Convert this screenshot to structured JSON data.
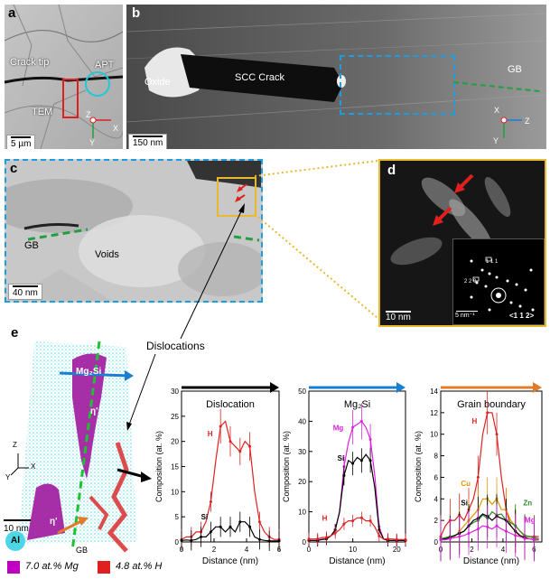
{
  "panels": {
    "a": {
      "label": "a",
      "crack_tip": "Crack tip",
      "apt": "APT",
      "tem": "TEM",
      "scale": "5 µm",
      "axes": {
        "z": "Z",
        "x": "X",
        "y": "Y"
      }
    },
    "b": {
      "label": "b",
      "oxide": "Oxide",
      "scc": "SCC Crack",
      "gb": "GB",
      "scale": "150 nm",
      "axes": {
        "x": "X",
        "z": "Z",
        "y": "Y"
      }
    },
    "c": {
      "label": "c",
      "gb": "GB",
      "voids": "Voids",
      "scale": "40 nm"
    },
    "d": {
      "label": "d",
      "scale": "10 nm",
      "inset_scale": "5 nm⁻¹",
      "zone": "<1 1 2>",
      "spot1": "1 1 1",
      "spot2": "2 2 0"
    },
    "e": {
      "label": "e",
      "dislocations": "Dislocations",
      "mg2si": "Mg₂Si",
      "eta": "η'",
      "eta2": "η'",
      "gb": "GB",
      "scale": "10 nm",
      "al": "Al",
      "axes": {
        "z": "Z",
        "x": "X",
        "y": "Y"
      }
    }
  },
  "legend": {
    "mg": "7.0 at.% Mg",
    "h": "4.8 at.% H",
    "mg_color": "#c000c0",
    "h_color": "#e02020"
  },
  "colors": {
    "h": "#dd2222",
    "si": "#000000",
    "mg": "#dd22dd",
    "cu": "#e69500",
    "zn": "#2a8a2a",
    "arrow_black": "#000000",
    "arrow_blue": "#1a7fd0",
    "arrow_orange": "#e07b2a",
    "dashed_blue": "#1a9ee0",
    "gold": "#e8b830"
  },
  "chart_data": [
    {
      "type": "line",
      "title": "Dislocation",
      "xlabel": "Distance (nm)",
      "ylabel": "Composition (at. %)",
      "xlim": [
        0,
        6
      ],
      "ylim": [
        0,
        30
      ],
      "xticks": [
        0,
        2,
        4,
        6
      ],
      "yticks": [
        0,
        5,
        10,
        15,
        20,
        25,
        30
      ],
      "series": [
        {
          "name": "H",
          "color": "#dd2222",
          "x": [
            0,
            0.3,
            0.6,
            0.9,
            1.2,
            1.5,
            1.8,
            2.1,
            2.4,
            2.7,
            3.0,
            3.3,
            3.6,
            3.9,
            4.2,
            4.5,
            4.8,
            5.1,
            5.4,
            5.7,
            6.0
          ],
          "y": [
            0.5,
            1,
            1,
            2,
            2,
            4,
            8,
            16,
            23,
            24,
            20,
            19,
            18,
            20,
            19,
            10,
            4,
            2,
            1,
            0.5,
            0.5
          ]
        },
        {
          "name": "Si",
          "color": "#000000",
          "x": [
            0,
            0.3,
            0.6,
            0.9,
            1.2,
            1.5,
            1.8,
            2.1,
            2.4,
            2.7,
            3.0,
            3.3,
            3.6,
            3.9,
            4.2,
            4.5,
            4.8,
            5.1,
            5.4,
            5.7,
            6.0
          ],
          "y": [
            0.3,
            0.4,
            0.3,
            0.5,
            1,
            1,
            2,
            3,
            3,
            2,
            3,
            2,
            4,
            4,
            3,
            1,
            0.5,
            0.3,
            0.2,
            0.2,
            0.2
          ]
        }
      ]
    },
    {
      "type": "line",
      "title": "Mg₂Si",
      "xlabel": "Distance (nm)",
      "ylabel": "Composition (at. %)",
      "xlim": [
        0,
        22
      ],
      "ylim": [
        0,
        50
      ],
      "xticks": [
        0,
        10,
        20
      ],
      "yticks": [
        0,
        10,
        20,
        30,
        40,
        50
      ],
      "series": [
        {
          "name": "Mg",
          "color": "#dd22dd",
          "x": [
            0,
            1,
            2,
            3,
            4,
            5,
            6,
            7,
            8,
            9,
            10,
            11,
            12,
            13,
            14,
            15,
            16,
            17,
            18,
            19,
            20,
            21,
            22
          ],
          "y": [
            0.5,
            0.5,
            0.5,
            1,
            1,
            2,
            4,
            10,
            25,
            33,
            38,
            39,
            40,
            38,
            34,
            22,
            5,
            1,
            0.5,
            0.5,
            0.5,
            0.5,
            0.5
          ]
        },
        {
          "name": "Si",
          "color": "#000000",
          "x": [
            0,
            1,
            2,
            3,
            4,
            5,
            6,
            7,
            8,
            9,
            10,
            11,
            12,
            13,
            14,
            15,
            16,
            17,
            18,
            19,
            20,
            21,
            22
          ],
          "y": [
            0.5,
            0.5,
            0.5,
            0.8,
            1,
            2,
            4,
            10,
            22,
            27,
            26,
            28,
            27,
            29,
            27,
            18,
            4,
            1,
            0.5,
            0.5,
            0.5,
            0.5,
            0.5
          ]
        },
        {
          "name": "H",
          "color": "#dd2222",
          "x": [
            0,
            1,
            2,
            3,
            4,
            5,
            6,
            7,
            8,
            9,
            10,
            11,
            12,
            13,
            14,
            15,
            16,
            17,
            18,
            19,
            20,
            21,
            22
          ],
          "y": [
            1,
            1,
            1,
            1.5,
            1.5,
            2,
            3,
            4,
            6,
            7,
            7,
            8,
            8,
            7,
            7,
            5,
            2,
            1,
            1,
            1,
            0.8,
            0.8,
            0.8
          ]
        }
      ]
    },
    {
      "type": "line",
      "title": "Grain boundary",
      "xlabel": "Distance (nm)",
      "ylabel": "Composition (at. %)",
      "xlim": [
        0,
        6.5
      ],
      "ylim": [
        0,
        14
      ],
      "xticks": [
        0,
        2,
        4,
        6
      ],
      "yticks": [
        0,
        2,
        4,
        6,
        8,
        10,
        12,
        14
      ],
      "series": [
        {
          "name": "H",
          "color": "#dd2222",
          "x": [
            0,
            0.3,
            0.6,
            0.9,
            1.2,
            1.5,
            1.8,
            2.1,
            2.4,
            2.7,
            3.0,
            3.3,
            3.6,
            3.9,
            4.2,
            4.5,
            4.8,
            5.1,
            5.4,
            5.7,
            6.0,
            6.3
          ],
          "y": [
            0.5,
            1.5,
            2,
            2,
            2.5,
            2,
            3,
            4,
            6,
            10,
            12,
            12,
            10,
            6,
            3,
            1.5,
            1,
            0.5,
            0.5,
            0.5,
            0.5,
            0.5
          ]
        },
        {
          "name": "Cu",
          "color": "#e69500",
          "x": [
            0,
            0.3,
            0.6,
            0.9,
            1.2,
            1.5,
            1.8,
            2.1,
            2.4,
            2.7,
            3.0,
            3.3,
            3.6,
            3.9,
            4.2,
            4.5,
            4.8,
            5.1,
            5.4,
            5.7,
            6.0,
            6.3
          ],
          "y": [
            0.2,
            0.3,
            0.5,
            0.5,
            1,
            1.5,
            2,
            2.5,
            3,
            4,
            4,
            3.5,
            4,
            3,
            3,
            2,
            1.5,
            1,
            0.5,
            0.5,
            0.3,
            0.3
          ]
        },
        {
          "name": "Zn",
          "color": "#2a8a2a",
          "x": [
            0,
            0.3,
            0.6,
            0.9,
            1.2,
            1.5,
            1.8,
            2.1,
            2.4,
            2.7,
            3.0,
            3.3,
            3.6,
            3.9,
            4.2,
            4.5,
            4.8,
            5.1,
            5.4,
            5.7,
            6.0,
            6.3
          ],
          "y": [
            0.3,
            0.4,
            0.5,
            0.6,
            0.8,
            1,
            1.5,
            1.8,
            2,
            2.5,
            2.2,
            2.8,
            2.5,
            2.6,
            2,
            1.8,
            1.5,
            1,
            0.6,
            0.5,
            0.4,
            0.3
          ]
        },
        {
          "name": "Si",
          "color": "#000000",
          "x": [
            0,
            0.3,
            0.6,
            0.9,
            1.2,
            1.5,
            1.8,
            2.1,
            2.4,
            2.7,
            3.0,
            3.3,
            3.6,
            3.9,
            4.2,
            4.5,
            4.8,
            5.1,
            5.4,
            5.7,
            6.0,
            6.3
          ],
          "y": [
            0.2,
            0.3,
            0.4,
            0.6,
            0.8,
            1,
            1.5,
            2,
            2.2,
            2.6,
            2.4,
            2,
            2.4,
            2.2,
            2,
            1.5,
            1,
            0.6,
            0.4,
            0.3,
            0.2,
            0.2
          ]
        },
        {
          "name": "Mg",
          "color": "#dd22dd",
          "x": [
            0,
            0.3,
            0.6,
            0.9,
            1.2,
            1.5,
            1.8,
            2.1,
            2.4,
            2.7,
            3.0,
            3.3,
            3.6,
            3.9,
            4.2,
            4.5,
            4.8,
            5.1,
            5.4,
            5.7,
            6.0,
            6.3
          ],
          "y": [
            0.2,
            0.2,
            0.3,
            0.4,
            0.5,
            0.6,
            0.8,
            1,
            1.2,
            1.5,
            1.4,
            1.2,
            1.5,
            1.2,
            1,
            0.8,
            0.6,
            0.5,
            0.3,
            0.3,
            0.2,
            0.2
          ]
        }
      ]
    }
  ]
}
